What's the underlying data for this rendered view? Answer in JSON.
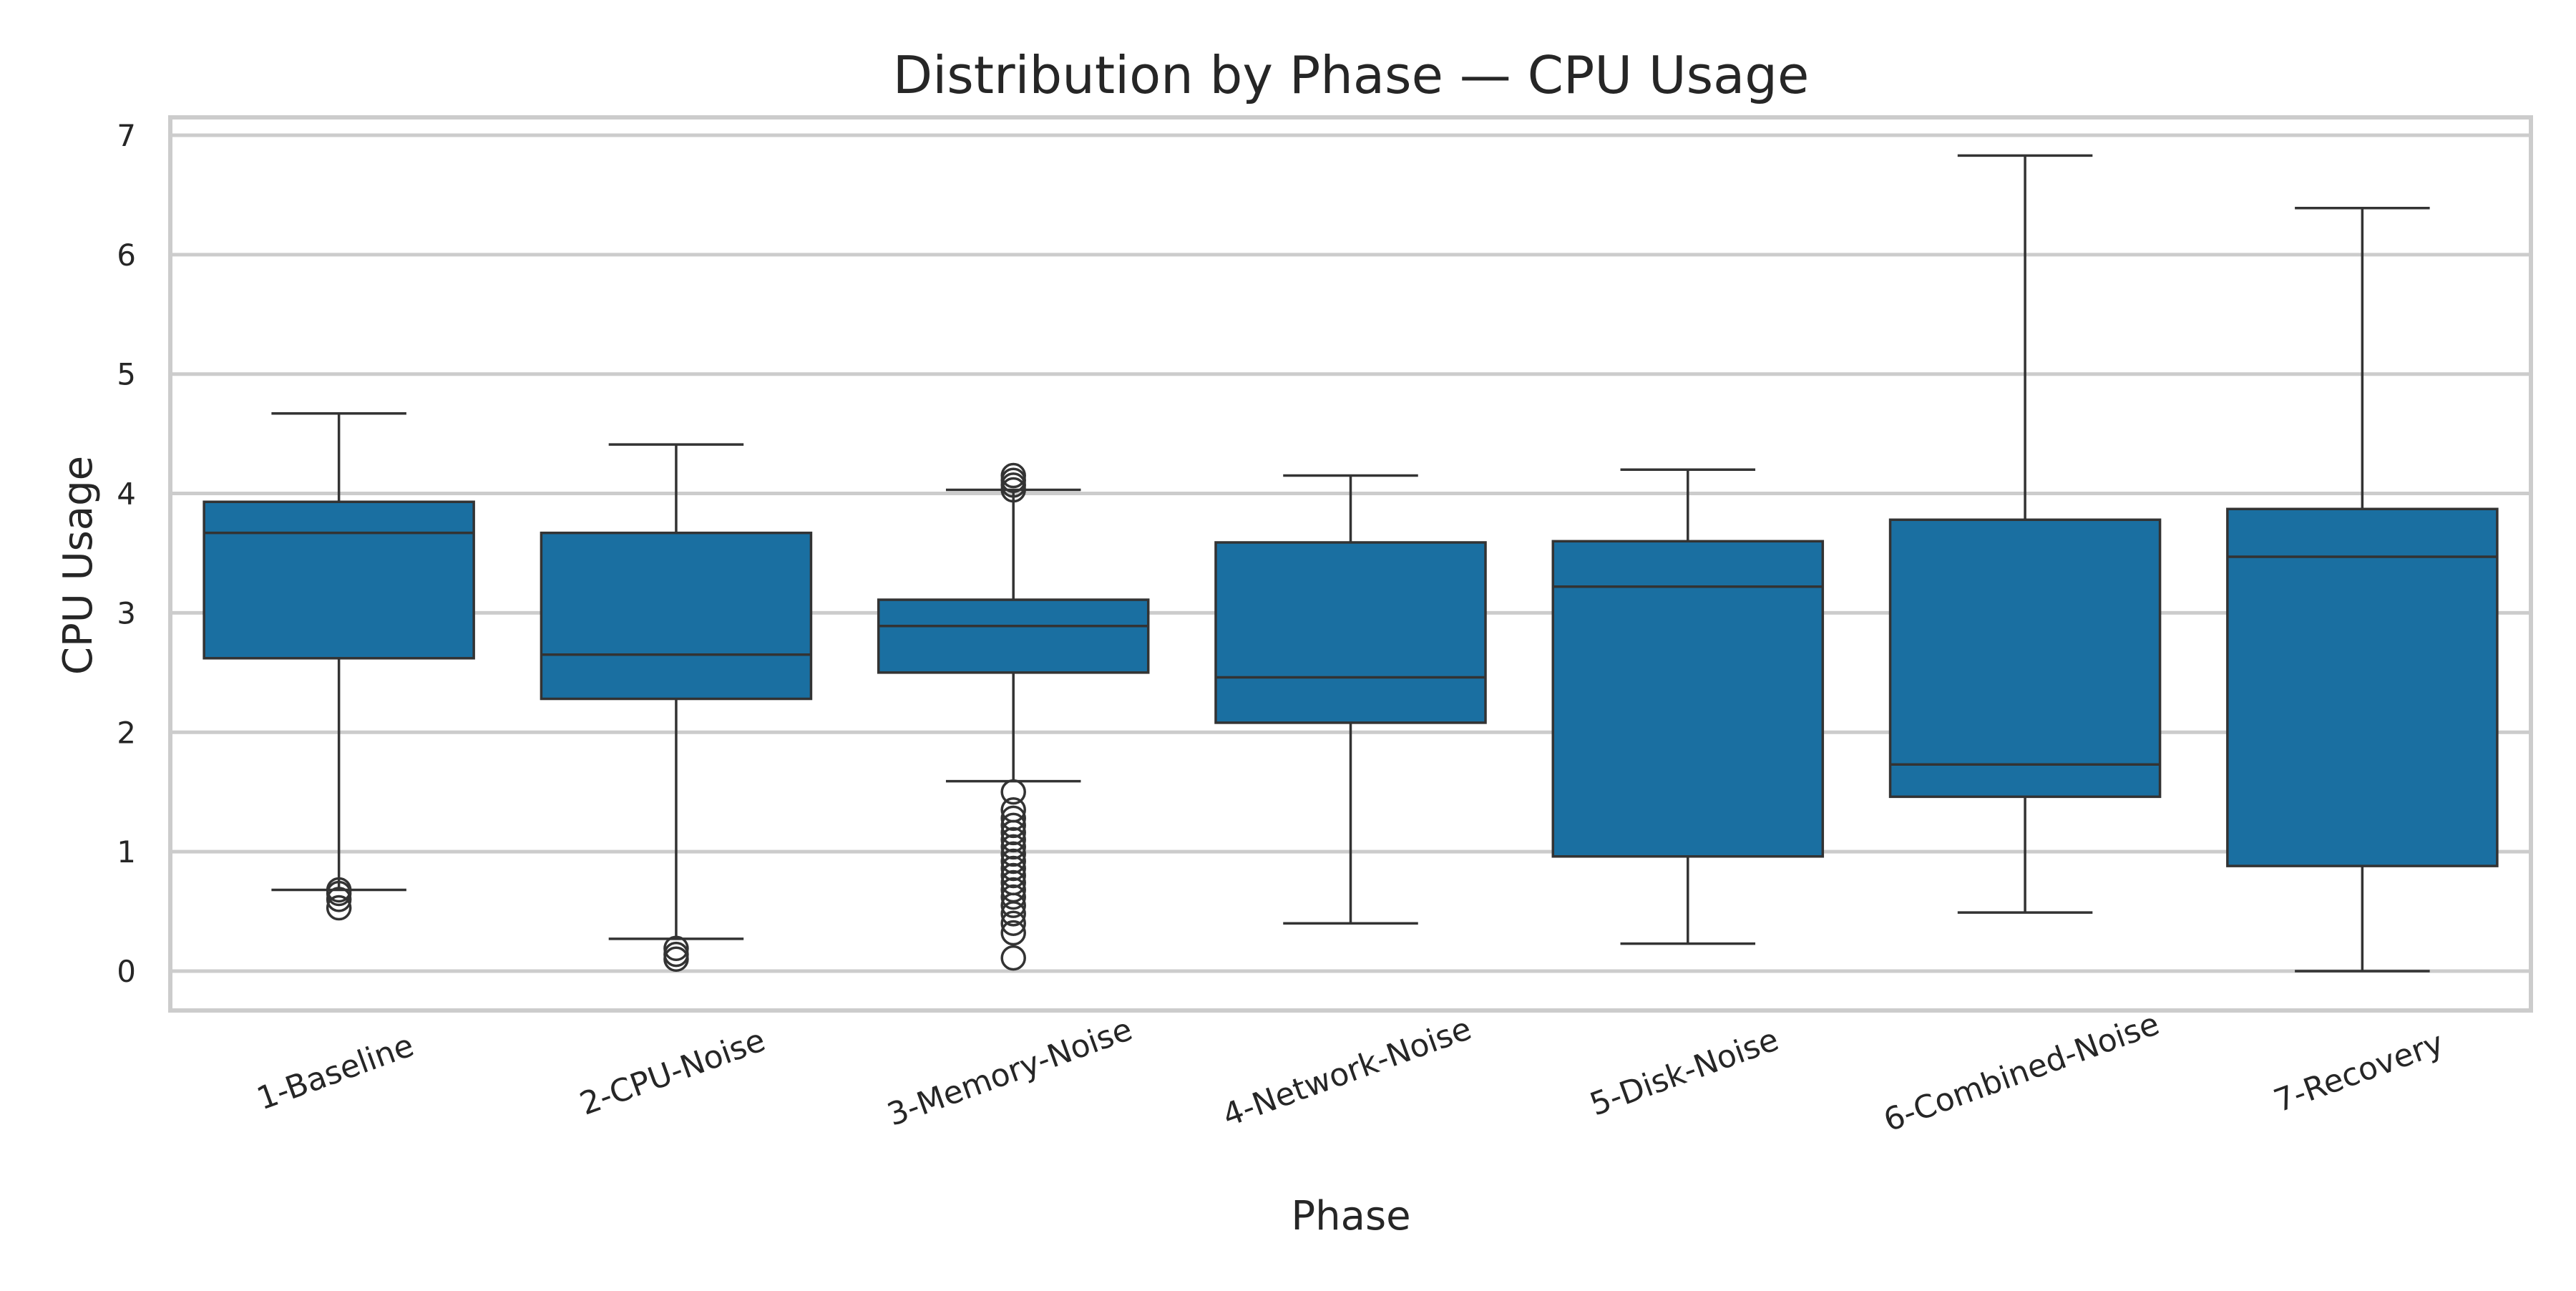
{
  "chart_data": {
    "type": "box",
    "title": "Distribution by Phase — CPU Usage",
    "xlabel": "Phase",
    "ylabel": "CPU Usage",
    "ylim": [
      -0.33,
      7.15
    ],
    "yticks": [
      0,
      1,
      2,
      3,
      4,
      5,
      6,
      7
    ],
    "grid": "horizontal",
    "colors": {
      "box_fill": "#1a6fa1",
      "line": "#333333",
      "grid": "#cccccc",
      "frame": "#cccccc",
      "text": "#262626"
    },
    "categories": [
      "1-Baseline",
      "2-CPU-Noise",
      "3-Memory-Noise",
      "4-Network-Noise",
      "5-Disk-Noise",
      "6-Combined-Noise",
      "7-Recovery"
    ],
    "boxes": [
      {
        "category": "1-Baseline",
        "whisker_low": 0.68,
        "q1": 2.62,
        "median": 3.67,
        "q3": 3.93,
        "whisker_high": 4.67,
        "outliers": [
          0.53,
          0.6,
          0.65,
          0.68
        ]
      },
      {
        "category": "2-CPU-Noise",
        "whisker_low": 0.27,
        "q1": 2.28,
        "median": 2.65,
        "q3": 3.67,
        "whisker_high": 4.41,
        "outliers": [
          0.1,
          0.14,
          0.19
        ]
      },
      {
        "category": "3-Memory-Noise",
        "whisker_low": 1.59,
        "q1": 2.5,
        "median": 2.89,
        "q3": 3.11,
        "whisker_high": 4.03,
        "outliers": [
          0.11,
          0.32,
          0.4,
          0.48,
          0.55,
          0.62,
          0.68,
          0.74,
          0.8,
          0.86,
          0.92,
          0.98,
          1.04,
          1.1,
          1.16,
          1.22,
          1.28,
          1.35,
          1.5,
          4.03,
          4.07,
          4.11,
          4.15
        ]
      },
      {
        "category": "4-Network-Noise",
        "whisker_low": 0.4,
        "q1": 2.08,
        "median": 2.46,
        "q3": 3.59,
        "whisker_high": 4.15,
        "outliers": []
      },
      {
        "category": "5-Disk-Noise",
        "whisker_low": 0.23,
        "q1": 0.96,
        "median": 3.22,
        "q3": 3.6,
        "whisker_high": 4.2,
        "outliers": []
      },
      {
        "category": "6-Combined-Noise",
        "whisker_low": 0.49,
        "q1": 1.46,
        "median": 1.73,
        "q3": 3.78,
        "whisker_high": 6.83,
        "outliers": []
      },
      {
        "category": "7-Recovery",
        "whisker_low": 0.0,
        "q1": 0.88,
        "median": 3.47,
        "q3": 3.87,
        "whisker_high": 6.39,
        "outliers": []
      }
    ]
  }
}
